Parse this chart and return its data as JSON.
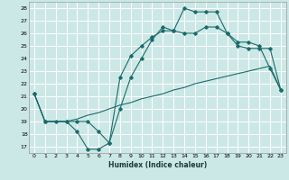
{
  "xlabel": "Humidex (Indice chaleur)",
  "background_color": "#cce8e6",
  "grid_color": "#ffffff",
  "line_color": "#1a6b6b",
  "xlim": [
    -0.5,
    23.5
  ],
  "ylim": [
    16.5,
    28.5
  ],
  "xticks": [
    0,
    1,
    2,
    3,
    4,
    5,
    6,
    7,
    8,
    9,
    10,
    11,
    12,
    13,
    14,
    15,
    16,
    17,
    18,
    19,
    20,
    21,
    22,
    23
  ],
  "yticks": [
    17,
    18,
    19,
    20,
    21,
    22,
    23,
    24,
    25,
    26,
    27,
    28
  ],
  "line1_x": [
    0,
    1,
    2,
    3,
    4,
    5,
    6,
    7,
    8,
    9,
    10,
    11,
    12,
    13,
    14,
    15,
    16,
    17,
    18,
    19,
    20,
    21,
    22,
    23
  ],
  "line1_y": [
    21.2,
    19.0,
    19.0,
    19.0,
    18.2,
    16.8,
    16.8,
    17.3,
    22.5,
    24.2,
    25.0,
    25.7,
    26.2,
    26.2,
    28.0,
    27.7,
    27.7,
    27.7,
    26.0,
    25.3,
    25.3,
    25.0,
    23.2,
    21.5
  ],
  "line2_x": [
    0,
    1,
    3,
    4,
    5,
    6,
    7,
    8,
    9,
    10,
    11,
    12,
    13,
    14,
    15,
    16,
    17,
    18,
    19,
    20,
    21,
    22,
    23
  ],
  "line2_y": [
    21.2,
    19.0,
    19.0,
    19.2,
    19.5,
    19.7,
    20.0,
    20.3,
    20.5,
    20.8,
    21.0,
    21.2,
    21.5,
    21.7,
    22.0,
    22.2,
    22.4,
    22.6,
    22.8,
    23.0,
    23.2,
    23.4,
    21.5
  ],
  "line3_x": [
    0,
    1,
    3,
    4,
    5,
    6,
    7,
    8,
    9,
    10,
    11,
    12,
    13,
    14,
    15,
    16,
    17,
    18,
    19,
    20,
    21,
    22,
    23
  ],
  "line3_y": [
    21.2,
    19.0,
    19.0,
    19.0,
    19.0,
    18.2,
    17.3,
    20.0,
    22.5,
    24.0,
    25.5,
    26.5,
    26.2,
    26.0,
    26.0,
    26.5,
    26.5,
    26.0,
    25.0,
    24.8,
    24.8,
    24.8,
    21.5
  ]
}
